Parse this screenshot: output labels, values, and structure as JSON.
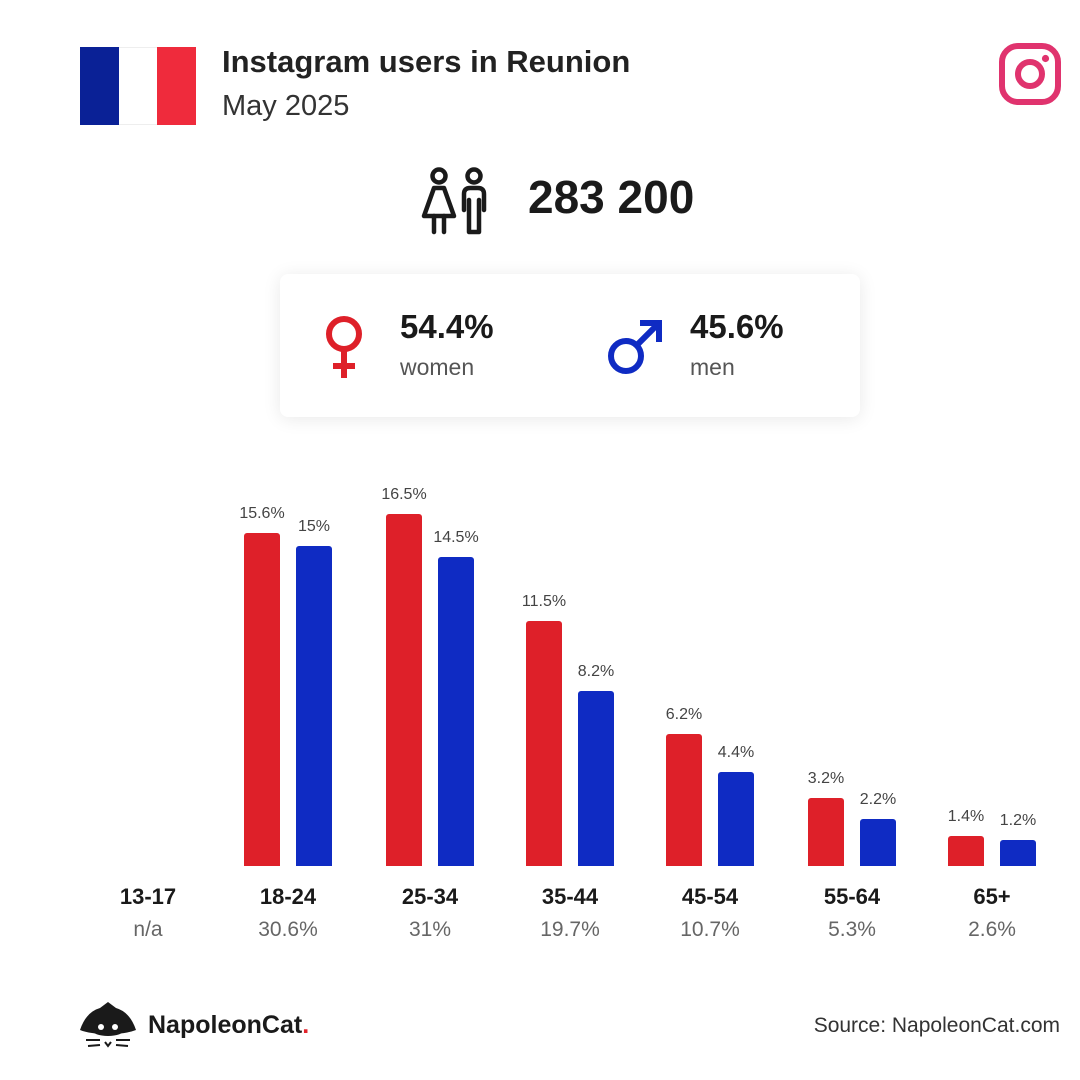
{
  "header": {
    "title": "Instagram users in Reunion",
    "subtitle": "May 2025"
  },
  "colors": {
    "women": "#de2029",
    "men": "#0f2bc3",
    "flag_blue": "#0a2196",
    "flag_white": "#ffffff",
    "flag_red": "#ef2b3c",
    "instagram": "#e0336e"
  },
  "icons": {
    "flag": "france-flag-icon",
    "platform": "instagram-icon",
    "users": "users-icon",
    "female": "female-symbol-icon",
    "male": "male-symbol-icon",
    "brand": "napoleoncat-logo-icon"
  },
  "summary": {
    "total_users": "283 200",
    "women_pct": "54.4%",
    "women_label": "women",
    "men_pct": "45.6%",
    "men_label": "men"
  },
  "chart_data": {
    "type": "bar",
    "categories": [
      "13-17",
      "18-24",
      "25-34",
      "35-44",
      "45-54",
      "55-64",
      "65+"
    ],
    "category_totals": [
      "n/a",
      "30.6%",
      "31%",
      "19.7%",
      "10.7%",
      "5.3%",
      "2.6%"
    ],
    "series": [
      {
        "name": "women",
        "values": [
          null,
          15.6,
          16.5,
          11.5,
          6.2,
          3.2,
          1.4
        ],
        "labels": [
          "",
          "15.6%",
          "16.5%",
          "11.5%",
          "6.2%",
          "3.2%",
          "1.4%"
        ]
      },
      {
        "name": "men",
        "values": [
          null,
          15,
          14.5,
          8.2,
          4.4,
          2.2,
          1.2
        ],
        "labels": [
          "",
          "15%",
          "14.5%",
          "8.2%",
          "4.4%",
          "2.2%",
          "1.2%"
        ]
      }
    ],
    "ylim": [
      0,
      16.5
    ],
    "grid": false,
    "legend": "none"
  },
  "footer": {
    "brand": "NapoleonCat",
    "brand_dot": ".",
    "source": "Source: NapoleonCat.com"
  }
}
